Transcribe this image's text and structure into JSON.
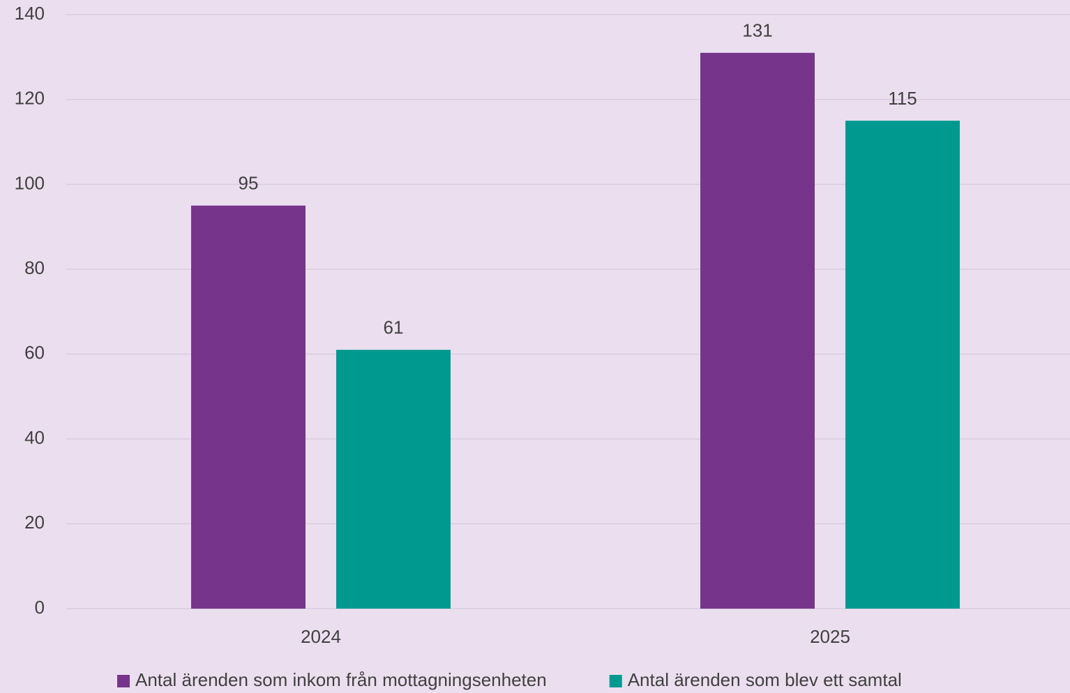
{
  "chart_data": {
    "type": "bar",
    "categories": [
      "2024",
      "2025"
    ],
    "series": [
      {
        "name": "Antal ärenden som inkom från mottagningsenheten",
        "color": "#76358a",
        "values": [
          95,
          131
        ]
      },
      {
        "name": "Antal ärenden som blev ett samtal",
        "color": "#009990",
        "values": [
          61,
          115
        ]
      }
    ],
    "ylim": [
      0,
      140
    ],
    "yticks": [
      0,
      20,
      40,
      60,
      80,
      100,
      120,
      140
    ],
    "grid": true,
    "legend": "bottom"
  }
}
